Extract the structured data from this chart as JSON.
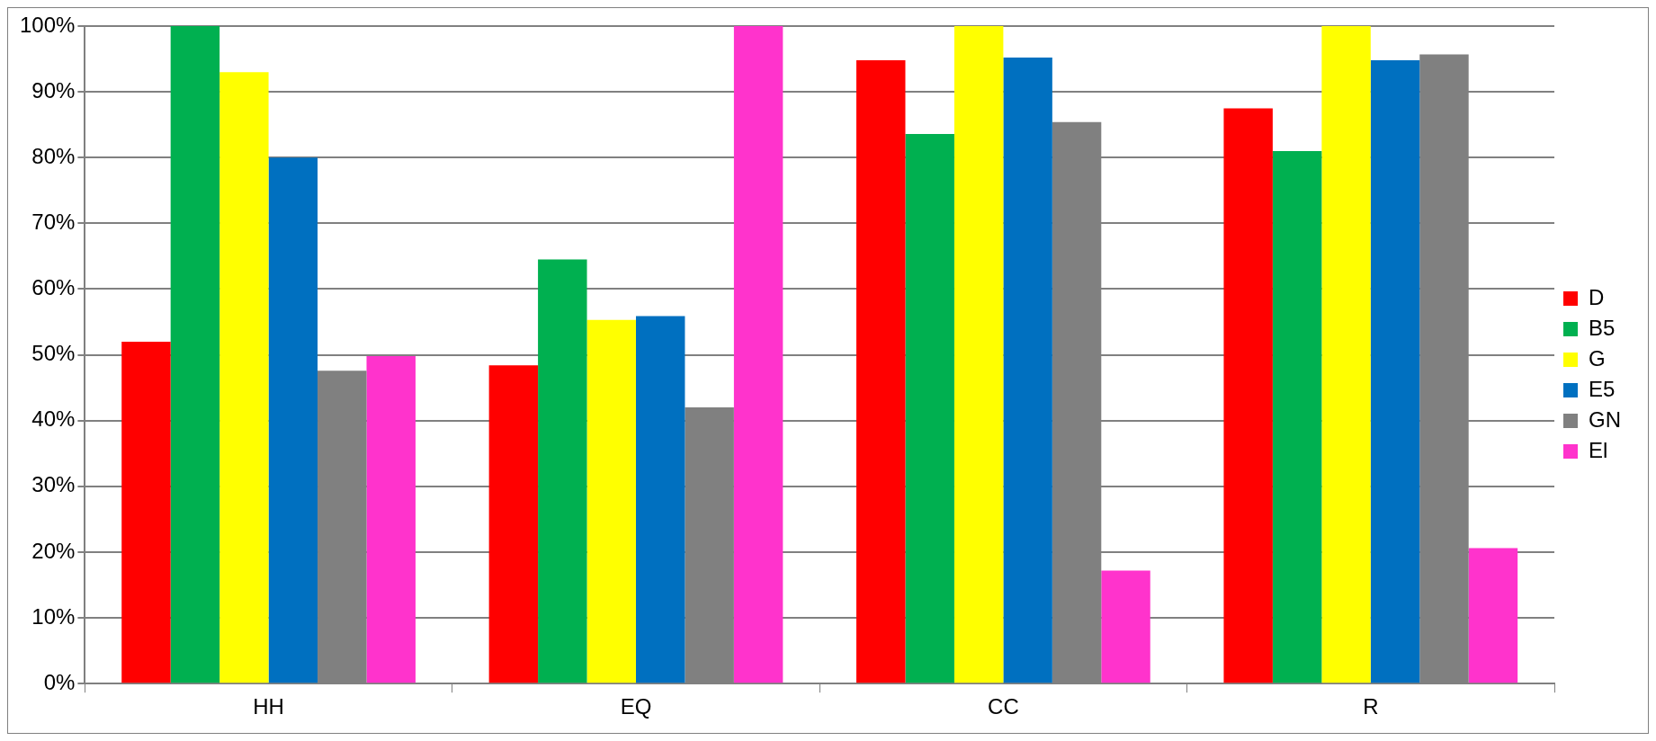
{
  "chart_data": {
    "type": "bar",
    "categories": [
      "HH",
      "EQ",
      "CC",
      "R"
    ],
    "series": [
      {
        "name": "D",
        "color": "#ff0000",
        "values": [
          52,
          48.4,
          94.8,
          87.5
        ]
      },
      {
        "name": "B5",
        "color": "#00b050",
        "values": [
          100,
          64.5,
          83.6,
          81
        ]
      },
      {
        "name": "G",
        "color": "#ffff00",
        "values": [
          93,
          55.3,
          100,
          100
        ]
      },
      {
        "name": "E5",
        "color": "#0070c0",
        "values": [
          80,
          55.9,
          95.2,
          94.8
        ]
      },
      {
        "name": "GN",
        "color": "#808080",
        "values": [
          47.6,
          42,
          85.4,
          95.7
        ]
      },
      {
        "name": "El",
        "color": "#ff33cc",
        "values": [
          49.8,
          100,
          17.2,
          20.6
        ]
      }
    ],
    "ylim": [
      0,
      100
    ],
    "yticks": [
      {
        "value": 0,
        "label": "0%"
      },
      {
        "value": 10,
        "label": "10%"
      },
      {
        "value": 20,
        "label": "20%"
      },
      {
        "value": 30,
        "label": "30%"
      },
      {
        "value": 40,
        "label": "40%"
      },
      {
        "value": 50,
        "label": "50%"
      },
      {
        "value": 60,
        "label": "60%"
      },
      {
        "value": 70,
        "label": "70%"
      },
      {
        "value": 80,
        "label": "80%"
      },
      {
        "value": 90,
        "label": "90%"
      },
      {
        "value": 100,
        "label": "100%"
      }
    ],
    "grid": "y",
    "legend": "right"
  }
}
